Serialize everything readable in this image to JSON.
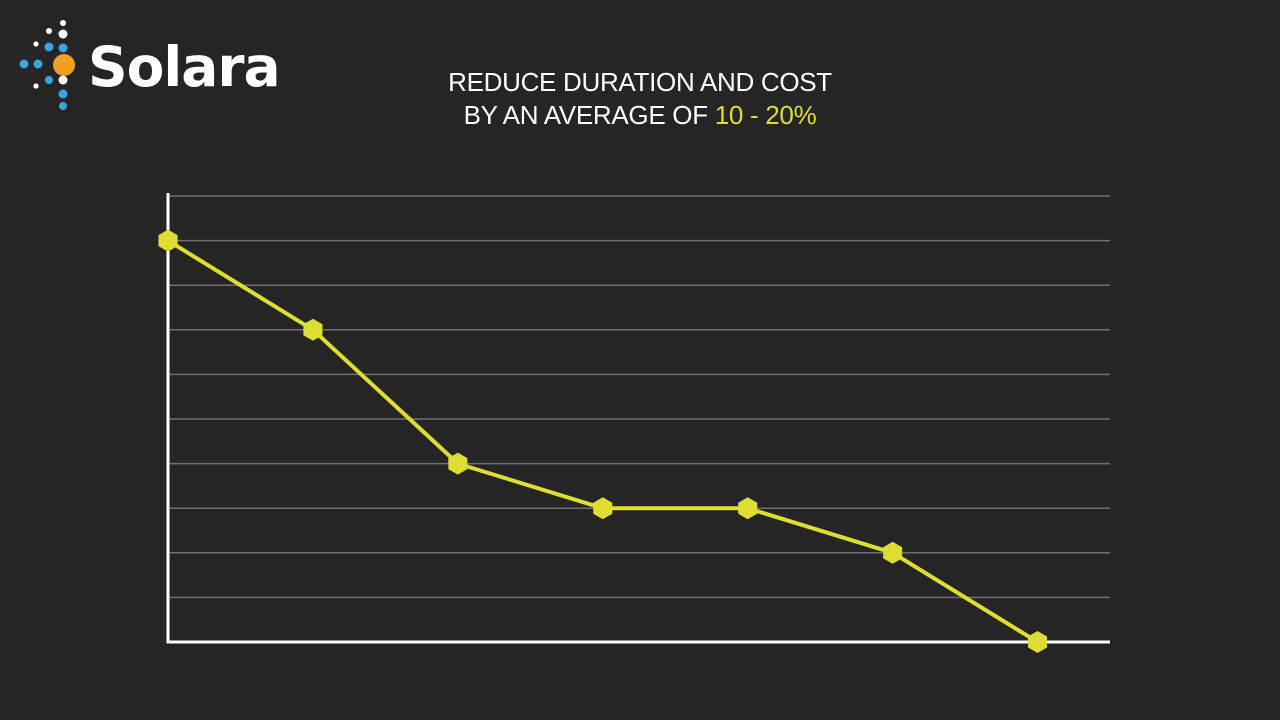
{
  "brand": {
    "name": "Solara",
    "colors": {
      "dot_white": "#ffffff",
      "dot_blue": "#3aa3e0",
      "dot_orange": "#f0a020"
    }
  },
  "title": {
    "line1": "REDUCE DURATION AND COST",
    "line2_prefix": "BY AN AVERAGE OF ",
    "line2_highlight": "10 - 20%"
  },
  "colors": {
    "background": "#252525",
    "accent": "#dede32",
    "grid": "#6f6f6f",
    "axis": "#ffffff"
  },
  "chart_data": {
    "type": "line",
    "title": "REDUCE DURATION AND COST BY AN AVERAGE OF 10 - 20%",
    "xlabel": "",
    "ylabel": "",
    "x": [
      1,
      2,
      3,
      4,
      5,
      6,
      7
    ],
    "series": [
      {
        "values": [
          9,
          7,
          4,
          3,
          3,
          2,
          0
        ]
      }
    ],
    "xlim": [
      1,
      7.5
    ],
    "ylim": [
      0,
      10
    ],
    "grid": true,
    "tick_labels": false,
    "marker": "hexagon"
  }
}
